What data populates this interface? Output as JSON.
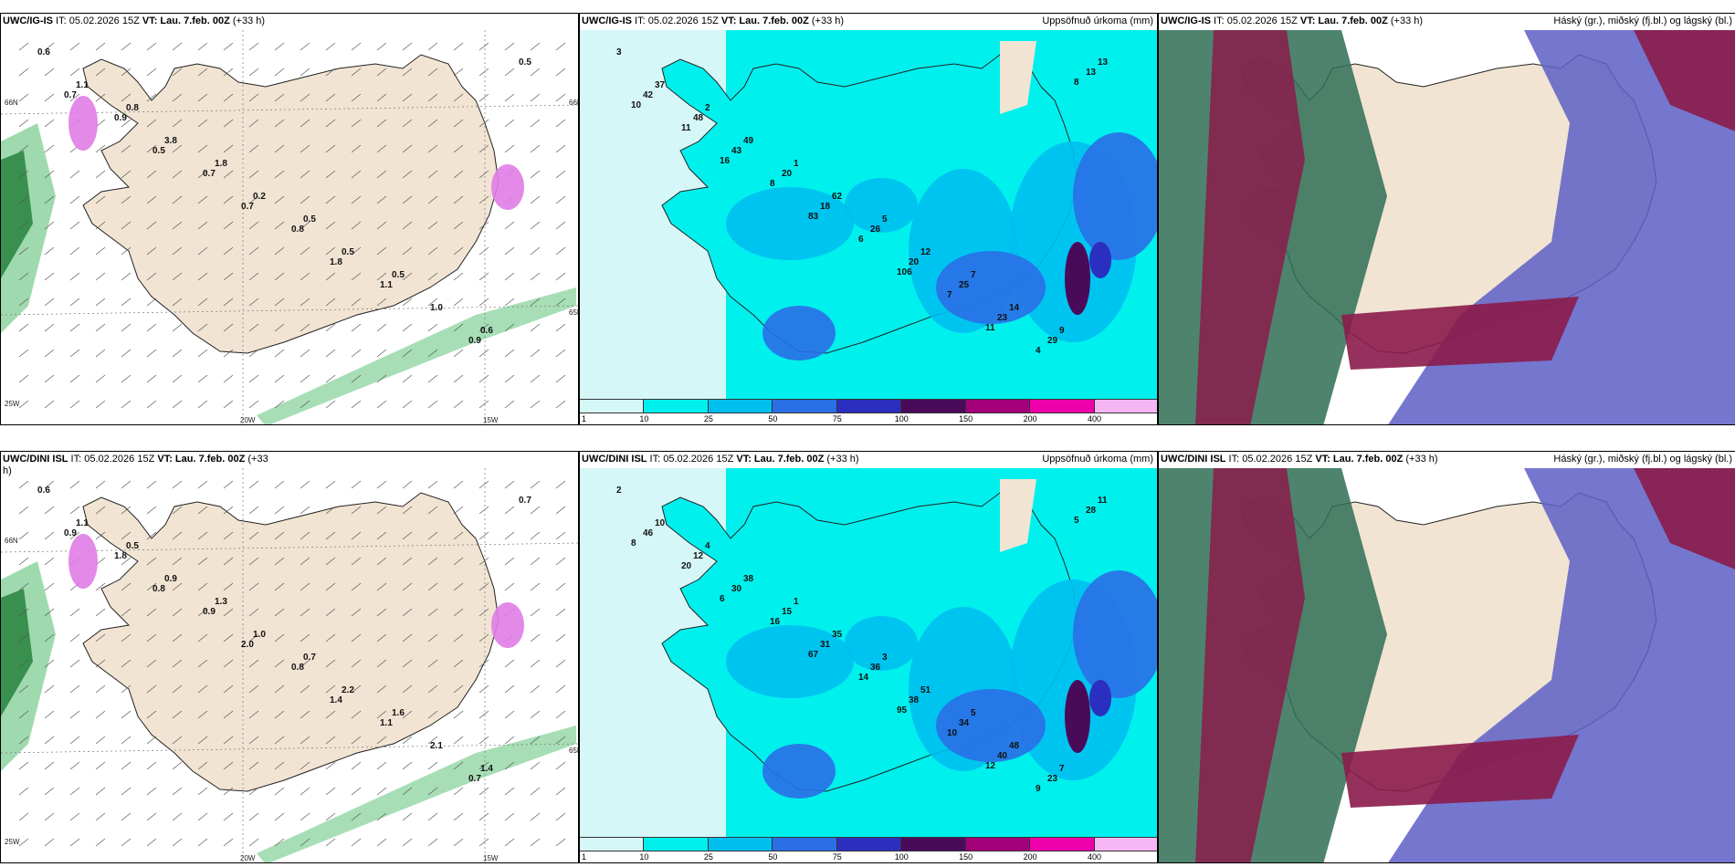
{
  "panels": [
    {
      "id": "p1",
      "title_model": "UWC/IG-IS",
      "title_it": " IT: 05.02.2026 15Z ",
      "title_vt_label": "VT:",
      "title_vt": " Lau. 7.feb. 00Z",
      "title_lead": " (+33 h)",
      "right_title": "",
      "kind": "wind",
      "labels": [
        "0.6",
        "0.8",
        "1.8",
        "0.5",
        "0.5",
        "0.6",
        "1.1",
        "3.8",
        "0.2",
        "0.5",
        "1.0",
        "0.5",
        "0.9",
        "0.7",
        "0.8",
        "1.1",
        "0.9",
        "0.7",
        "0.5",
        "0.7",
        "1.8"
      ],
      "axes": [
        "66N",
        "25W",
        "20W",
        "15W",
        "65N",
        "66N"
      ]
    },
    {
      "id": "p2",
      "title_model": "UWC/IG-IS",
      "title_it": " IT: 05.02.2026 15Z ",
      "title_vt_label": "VT:",
      "title_vt": " Lau. 7.feb. 00Z",
      "title_lead": " (+33 h)",
      "right_title": "Uppsöfnuð úrkoma (mm)",
      "kind": "precip",
      "labels": [
        "3",
        "2",
        "1",
        "5",
        "7",
        "9",
        "37",
        "49",
        "62",
        "12",
        "14",
        "13",
        "48",
        "20",
        "26",
        "25",
        "29",
        "42",
        "43",
        "18",
        "20",
        "23",
        "13",
        "11",
        "8",
        "6",
        "7",
        "4",
        "10",
        "16",
        "83",
        "106",
        "11",
        "8"
      ],
      "cbar_ticks": [
        "1",
        "10",
        "25",
        "50",
        "75",
        "100",
        "150",
        "200",
        "400"
      ]
    },
    {
      "id": "p3",
      "title_model": "UWC/IG-IS",
      "title_it": " IT: 05.02.2026 15Z ",
      "title_vt_label": "VT:",
      "title_vt": " Lau. 7.feb. 00Z",
      "title_lead": " (+33 h)",
      "right_title": "Háský (gr.), miðský (fj.bl.) og lágský (bl.)",
      "kind": "cloud",
      "labels": []
    },
    {
      "id": "p4",
      "title_model": "UWC/DINI ISL",
      "title_it": " IT: 05.02.2026 15Z ",
      "title_vt_label": "VT:",
      "title_vt": " Lau. 7.feb. 00Z",
      "title_lead": " (+33",
      "title_wrap": "h)",
      "right_title": "",
      "kind": "wind",
      "labels": [
        "0.6",
        "0.5",
        "1.3",
        "0.7",
        "1.6",
        "1.4",
        "1.1",
        "0.9",
        "1.0",
        "2.2",
        "2.1",
        "0.7",
        "1.8",
        "0.9",
        "0.8",
        "1.1",
        "0.7",
        "0.9",
        "0.8",
        "2.0",
        "1.4"
      ],
      "axes": [
        "66N",
        "25W",
        "20W",
        "15W",
        "65N"
      ]
    },
    {
      "id": "p5",
      "title_model": "UWC/DINI ISL",
      "title_it": " IT: 05.02.2026 15Z ",
      "title_vt_label": "VT:",
      "title_vt": " Lau. 7.feb. 00Z",
      "title_lead": " (+33 h)",
      "right_title": "Uppsöfnuð úrkoma (mm)",
      "kind": "precip",
      "labels": [
        "2",
        "4",
        "1",
        "3",
        "5",
        "7",
        "10",
        "38",
        "35",
        "51",
        "48",
        "11",
        "12",
        "15",
        "36",
        "34",
        "23",
        "46",
        "30",
        "31",
        "38",
        "40",
        "28",
        "20",
        "16",
        "14",
        "10",
        "9",
        "8",
        "6",
        "67",
        "95",
        "12",
        "5"
      ],
      "cbar_ticks": [
        "1",
        "10",
        "25",
        "50",
        "75",
        "100",
        "150",
        "200",
        "400"
      ]
    },
    {
      "id": "p6",
      "title_model": "UWC/DINI ISL",
      "title_it": " IT: 05.02.2026 15Z ",
      "title_vt_label": "VT:",
      "title_vt": " Lau. 7.feb. 00Z",
      "title_lead": " (+33 h)",
      "right_title": "Háský (gr.), miðský (fj.bl.) og lágský (bl.)",
      "kind": "cloud",
      "labels": []
    }
  ],
  "colors": {
    "land": "#f1e4d3",
    "sea": "#ffffff",
    "precip": [
      "#d6f7f8",
      "#00f0ee",
      "#00bfef",
      "#2a6fe6",
      "#2b2fbf",
      "#4a0a5a",
      "#a4007a",
      "#ee00aa",
      "#f6b6f3"
    ],
    "cloud_high": "#2f6e55",
    "cloud_mid": "#8b1b4b",
    "cloud_low": "#5d5fc6",
    "wind": "#5fc27a"
  }
}
